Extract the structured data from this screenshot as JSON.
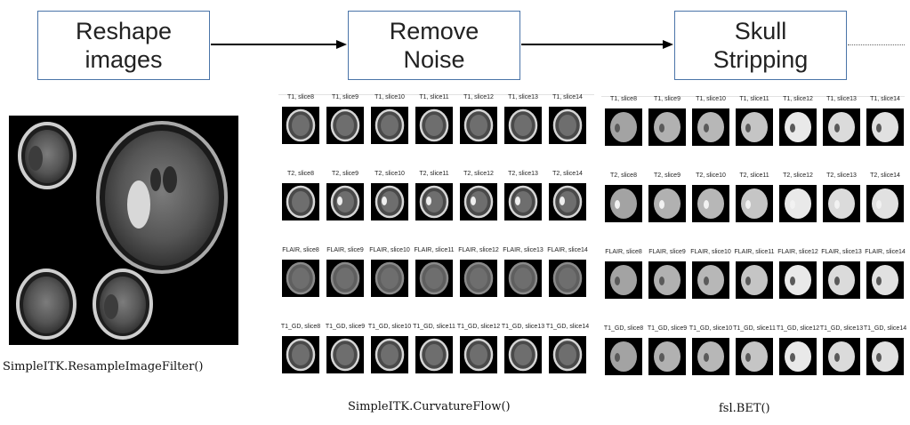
{
  "pipeline": {
    "steps": [
      {
        "line1": "Reshape",
        "line2": "images",
        "caption": "SimpleITK.ResampleImageFilter()"
      },
      {
        "line1": "Remove",
        "line2": "Noise",
        "caption": "SimpleITK.CurvatureFlow()"
      },
      {
        "line1": "Skull",
        "line2": "Stripping",
        "caption": "fsl.BET()"
      }
    ]
  },
  "slice_grids": {
    "sequences": [
      "T1",
      "T2",
      "FLAIR",
      "T1_GD"
    ],
    "slices": [
      "slice8",
      "slice9",
      "slice10",
      "slice11",
      "slice12",
      "slice13",
      "slice14"
    ],
    "noise_removed_labels": [
      [
        "T1, slice8",
        "T1, slice9",
        "T1, slice10",
        "T1, slice11",
        "T1, slice12",
        "T1, slice13",
        "T1, slice14"
      ],
      [
        "T2, slice8",
        "T2, slice9",
        "T2, slice10",
        "T2, slice11",
        "T2, slice12",
        "T2, slice13",
        "T2, slice14"
      ],
      [
        "FLAIR, slice8",
        "FLAIR, slice9",
        "FLAIR, slice10",
        "FLAIR, slice11",
        "FLAIR, slice12",
        "FLAIR, slice13",
        "FLAIR, slice14"
      ],
      [
        "T1_GD, slice8",
        "T1_GD, slice9",
        "T1_GD, slice10",
        "T1_GD, slice11",
        "T1_GD, slice12",
        "T1_GD, slice13",
        "T1_GD, slice14"
      ]
    ],
    "skull_stripped_labels": [
      [
        "T1, slice8",
        "T1, slice9",
        "T1, slice10",
        "T1, slice11",
        "T1, slice12",
        "T1, slice13",
        "T1, slice14"
      ],
      [
        "T2, slice8",
        "T2, slice9",
        "T2, slice10",
        "T2, slice11",
        "T2, slice12",
        "T2, slice13",
        "T2, slice14"
      ],
      [
        "FLAIR, slice8",
        "FLAIR, slice9",
        "FLAIR, slice10",
        "FLAIR, slice11",
        "FLAIR, slice12",
        "FLAIR, slice13",
        "FLAIR, slice14"
      ],
      [
        "T1_GD, slice8",
        "T1_GD, slice9",
        "T1_GD, slice10",
        "T1_GD, slice11",
        "T1_GD, slice12",
        "T1_GD, slice13",
        "T1_GD, slice14"
      ]
    ]
  },
  "colors": {
    "box_border": "#4a74a8",
    "arrow": "#000000"
  }
}
